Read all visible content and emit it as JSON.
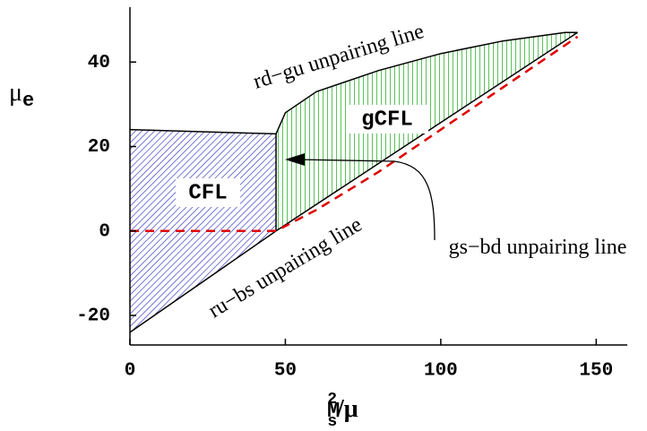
{
  "chart_data": {
    "type": "line",
    "xlabel": {
      "base": "M",
      "sub": "s",
      "sup": "2",
      "rest": "/μ"
    },
    "ylabel": {
      "base": "μ",
      "sub": "e"
    },
    "xlim": [
      0,
      160
    ],
    "ylim": [
      -27,
      53
    ],
    "xticks": [
      0,
      50,
      100,
      150
    ],
    "yticks": [
      -20,
      0,
      20,
      40
    ],
    "regions": [
      {
        "name": "CFL",
        "color": "#3030c0",
        "x": [
          0,
          47,
          47,
          0
        ],
        "y": [
          24,
          23,
          0,
          -24
        ]
      },
      {
        "name": "gCFL",
        "color": "#00a000",
        "x": [
          47,
          50,
          60,
          80,
          100,
          120,
          140,
          144,
          47
        ],
        "y": [
          23,
          28,
          33,
          38,
          42,
          45,
          47,
          47,
          0
        ]
      }
    ],
    "series": [
      {
        "name": "rd−gu unpairing line",
        "color": "#000000",
        "x": [
          0,
          47,
          50,
          60,
          80,
          100,
          120,
          140,
          144
        ],
        "y": [
          24,
          23,
          28,
          33,
          38,
          42,
          45,
          47,
          47
        ]
      },
      {
        "name": "ru−bs unpairing line",
        "color": "#000000",
        "x": [
          0,
          47,
          144
        ],
        "y": [
          -24,
          0,
          47
        ]
      },
      {
        "name": "gs−bd unpairing line",
        "color": "#000000",
        "x": [
          47,
          47
        ],
        "y": [
          0,
          23
        ]
      },
      {
        "color": "#e00000",
        "dash": true,
        "x": [
          0,
          47,
          60,
          80,
          100,
          120,
          144
        ],
        "y": [
          0,
          0,
          5,
          14,
          24,
          34,
          46
        ]
      }
    ]
  }
}
